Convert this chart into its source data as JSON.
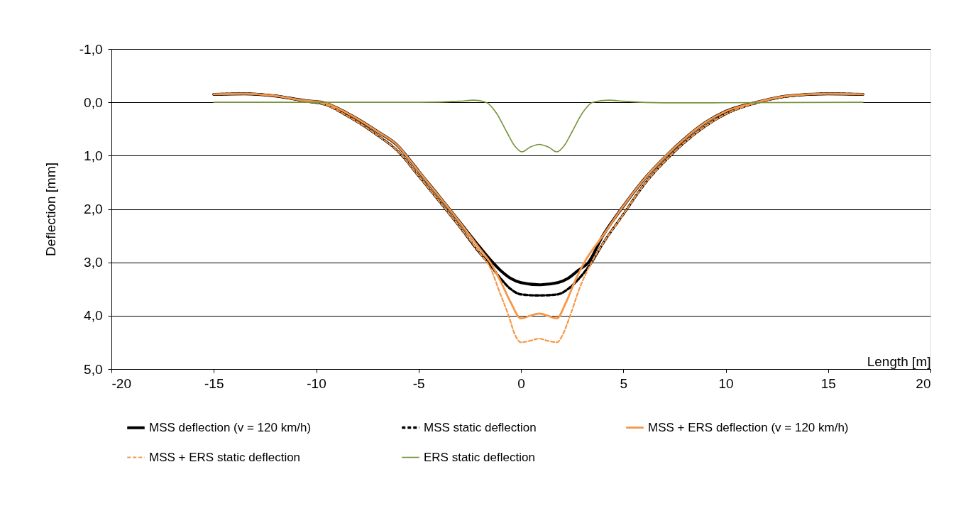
{
  "chart_data": {
    "type": "line",
    "xlabel": "Length [m]",
    "ylabel": "Deflection [mm]",
    "xlim": [
      -20,
      20
    ],
    "xticks": [
      -20,
      -15,
      -10,
      -5,
      0,
      5,
      10,
      15,
      20
    ],
    "ylim": [
      5,
      -1
    ],
    "yticks": [
      {
        "value": -1,
        "label": "-1,0"
      },
      {
        "value": 0,
        "label": "0,0"
      },
      {
        "value": 1,
        "label": "1,0"
      },
      {
        "value": 2,
        "label": "2,0"
      },
      {
        "value": 3,
        "label": "3,0"
      },
      {
        "value": 4,
        "label": "4,0"
      },
      {
        "value": 5,
        "label": "5,0"
      }
    ],
    "grid": "y",
    "legend": "bottom",
    "series": [
      {
        "name": "MSS deflection (v = 120 km/h)",
        "color": "#000000",
        "line_style": "solid",
        "x": [
          -15,
          -13.5,
          -12,
          -10.5,
          -9.7,
          -8.5,
          -7,
          -6,
          -5.6,
          -5,
          -4,
          -3,
          -2,
          -1.5,
          -1,
          -0.5,
          0,
          0.9,
          1.8,
          2.3,
          2.8,
          3.3,
          4,
          4.9,
          6,
          7.1,
          8,
          9,
          10,
          11.5,
          13,
          15,
          16.7
        ],
        "values": [
          -0.15,
          -0.16,
          -0.12,
          -0.03,
          0,
          0.2,
          0.55,
          0.82,
          1.0,
          1.29,
          1.76,
          2.24,
          2.72,
          2.95,
          3.15,
          3.3,
          3.38,
          3.42,
          3.38,
          3.3,
          3.15,
          3.0,
          2.5,
          2.0,
          1.45,
          1.0,
          0.68,
          0.38,
          0.17,
          0.0,
          -0.12,
          -0.16,
          -0.15
        ]
      },
      {
        "name": "MSS static deflection",
        "color": "#000000",
        "line_style": "dashed",
        "x": [
          -15,
          -13.5,
          -12,
          -10.5,
          -9.5,
          -8.5,
          -7,
          -6,
          -5,
          -4,
          -3,
          -2,
          -1.5,
          -1,
          -0.5,
          0,
          0.9,
          1.8,
          2.3,
          2.8,
          3.45,
          4,
          5,
          6,
          7.3,
          8,
          9,
          10,
          11.6,
          13,
          15,
          16.7
        ],
        "values": [
          -0.15,
          -0.16,
          -0.12,
          -0.02,
          0.05,
          0.25,
          0.62,
          0.92,
          1.38,
          1.85,
          2.33,
          2.83,
          3.05,
          3.3,
          3.5,
          3.6,
          3.62,
          3.6,
          3.5,
          3.32,
          3.0,
          2.65,
          2.1,
          1.55,
          1.0,
          0.75,
          0.45,
          0.22,
          0.0,
          -0.11,
          -0.16,
          -0.15
        ]
      },
      {
        "name": "MSS + ERS deflection (v = 120 km/h)",
        "color": "#f79646",
        "line_style": "solid",
        "x": [
          -15,
          -13.5,
          -12,
          -10.5,
          -9.7,
          -8.5,
          -7,
          -6,
          -5.6,
          -5,
          -4,
          -3,
          -2,
          -1.5,
          -1,
          -0.5,
          0,
          0.45,
          0.9,
          1.3,
          1.75,
          2.2,
          2.7,
          3.1,
          4,
          4.9,
          6,
          7.1,
          8,
          9,
          10,
          11.5,
          13,
          15,
          16.7
        ],
        "values": [
          -0.15,
          -0.16,
          -0.12,
          -0.03,
          0,
          0.2,
          0.55,
          0.82,
          1.0,
          1.29,
          1.76,
          2.24,
          2.75,
          3.0,
          3.35,
          3.75,
          4.05,
          4.0,
          3.96,
          4.0,
          4.05,
          3.75,
          3.3,
          3.0,
          2.5,
          2.0,
          1.45,
          1.0,
          0.68,
          0.38,
          0.17,
          0.0,
          -0.12,
          -0.16,
          -0.15
        ]
      },
      {
        "name": "MSS + ERS static deflection",
        "color": "#f79646",
        "line_style": "dashed",
        "x": [
          -15,
          -13.5,
          -12,
          -10.5,
          -9.5,
          -8.5,
          -7,
          -6,
          -5,
          -4,
          -3,
          -2,
          -1.5,
          -1,
          -0.6,
          -0.3,
          0,
          0.45,
          0.87,
          1.3,
          1.75,
          2.05,
          2.4,
          2.9,
          3.45,
          4,
          5,
          6,
          7.3,
          8,
          9,
          10,
          11.6,
          13,
          15,
          16.7
        ],
        "values": [
          -0.15,
          -0.16,
          -0.12,
          -0.02,
          0.05,
          0.25,
          0.62,
          0.92,
          1.38,
          1.85,
          2.33,
          2.83,
          3.1,
          3.6,
          4.0,
          4.35,
          4.5,
          4.47,
          4.43,
          4.47,
          4.5,
          4.35,
          4.0,
          3.45,
          3.0,
          2.65,
          2.1,
          1.55,
          1.0,
          0.75,
          0.45,
          0.22,
          0.0,
          -0.11,
          -0.16,
          -0.15
        ]
      },
      {
        "name": "ERS static deflection",
        "color": "#77933c",
        "line_style": "solid",
        "x": [
          -15,
          -5,
          -3,
          -2.3,
          -1.7,
          -1.2,
          -0.7,
          -0.3,
          0.05,
          0.45,
          0.9,
          1.35,
          1.75,
          2.1,
          2.5,
          3.0,
          3.5,
          4.3,
          5,
          7,
          16.7
        ],
        "values": [
          0,
          0,
          -0.02,
          -0.04,
          0,
          0.2,
          0.55,
          0.82,
          0.93,
          0.84,
          0.79,
          0.84,
          0.93,
          0.82,
          0.55,
          0.2,
          0,
          -0.04,
          -0.02,
          0.01,
          0
        ]
      }
    ]
  }
}
